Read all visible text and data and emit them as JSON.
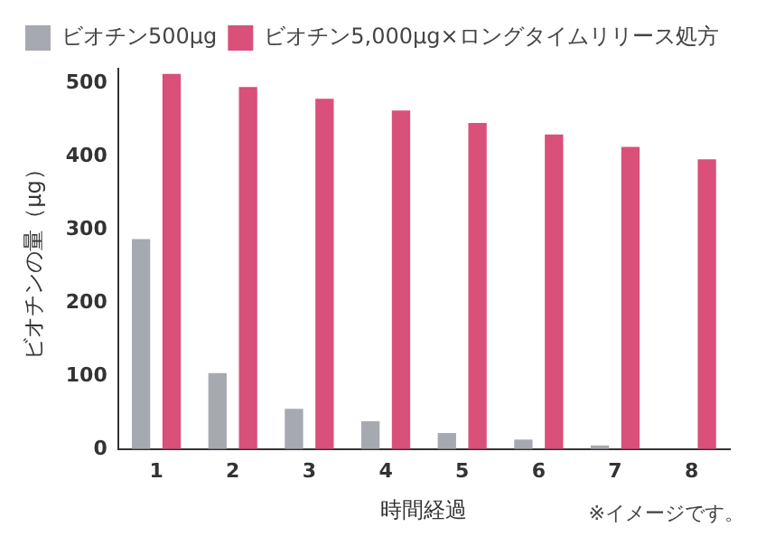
{
  "chart_data": {
    "type": "bar",
    "categories": [
      "1",
      "2",
      "3",
      "4",
      "5",
      "6",
      "7",
      "8"
    ],
    "series": [
      {
        "name": "ビオチン500µg",
        "color": "#a7a9b0",
        "values": [
          287,
          104,
          55,
          38,
          22,
          13,
          5,
          0
        ]
      },
      {
        "name": "ビオチン5,000µg×ロングタイムリリース処方",
        "color": "#d9507a",
        "values": [
          513,
          495,
          479,
          463,
          446,
          430,
          413,
          396
        ]
      }
    ],
    "xlabel": "時間経過",
    "ylabel": "ビオチンの量（µg）",
    "annotations": [
      "※イメージです。"
    ],
    "ylim": [
      0,
      520
    ],
    "yticks": [
      0,
      100,
      200,
      300,
      400,
      500
    ],
    "grid": false,
    "legend": "top left"
  }
}
